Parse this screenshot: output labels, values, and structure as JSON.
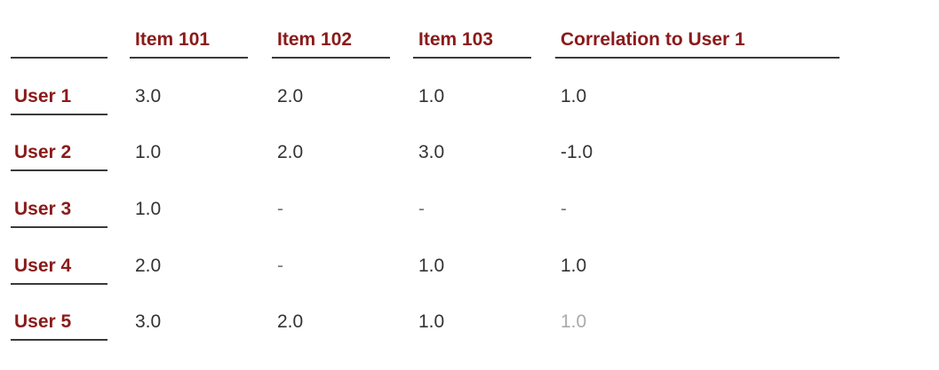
{
  "table": {
    "headers": [
      "",
      "Item 101",
      "Item 102",
      "Item 103",
      "Correlation to User 1"
    ],
    "rows": [
      {
        "label": "User 1",
        "cells": [
          "3.0",
          "2.0",
          "1.0",
          "1.0"
        ]
      },
      {
        "label": "User 2",
        "cells": [
          "1.0",
          "2.0",
          "3.0",
          "-1.0"
        ]
      },
      {
        "label": "User 3",
        "cells": [
          "1.0",
          "-",
          "-",
          "-"
        ]
      },
      {
        "label": "User 4",
        "cells": [
          "2.0",
          "-",
          "1.0",
          "1.0"
        ]
      },
      {
        "label": "User 5",
        "cells": [
          "3.0",
          "2.0",
          "1.0",
          "1.0"
        ]
      }
    ]
  },
  "colors": {
    "header_text": "#8b1a1a",
    "cell_text": "#333333",
    "rule": "#3a3a3a"
  }
}
